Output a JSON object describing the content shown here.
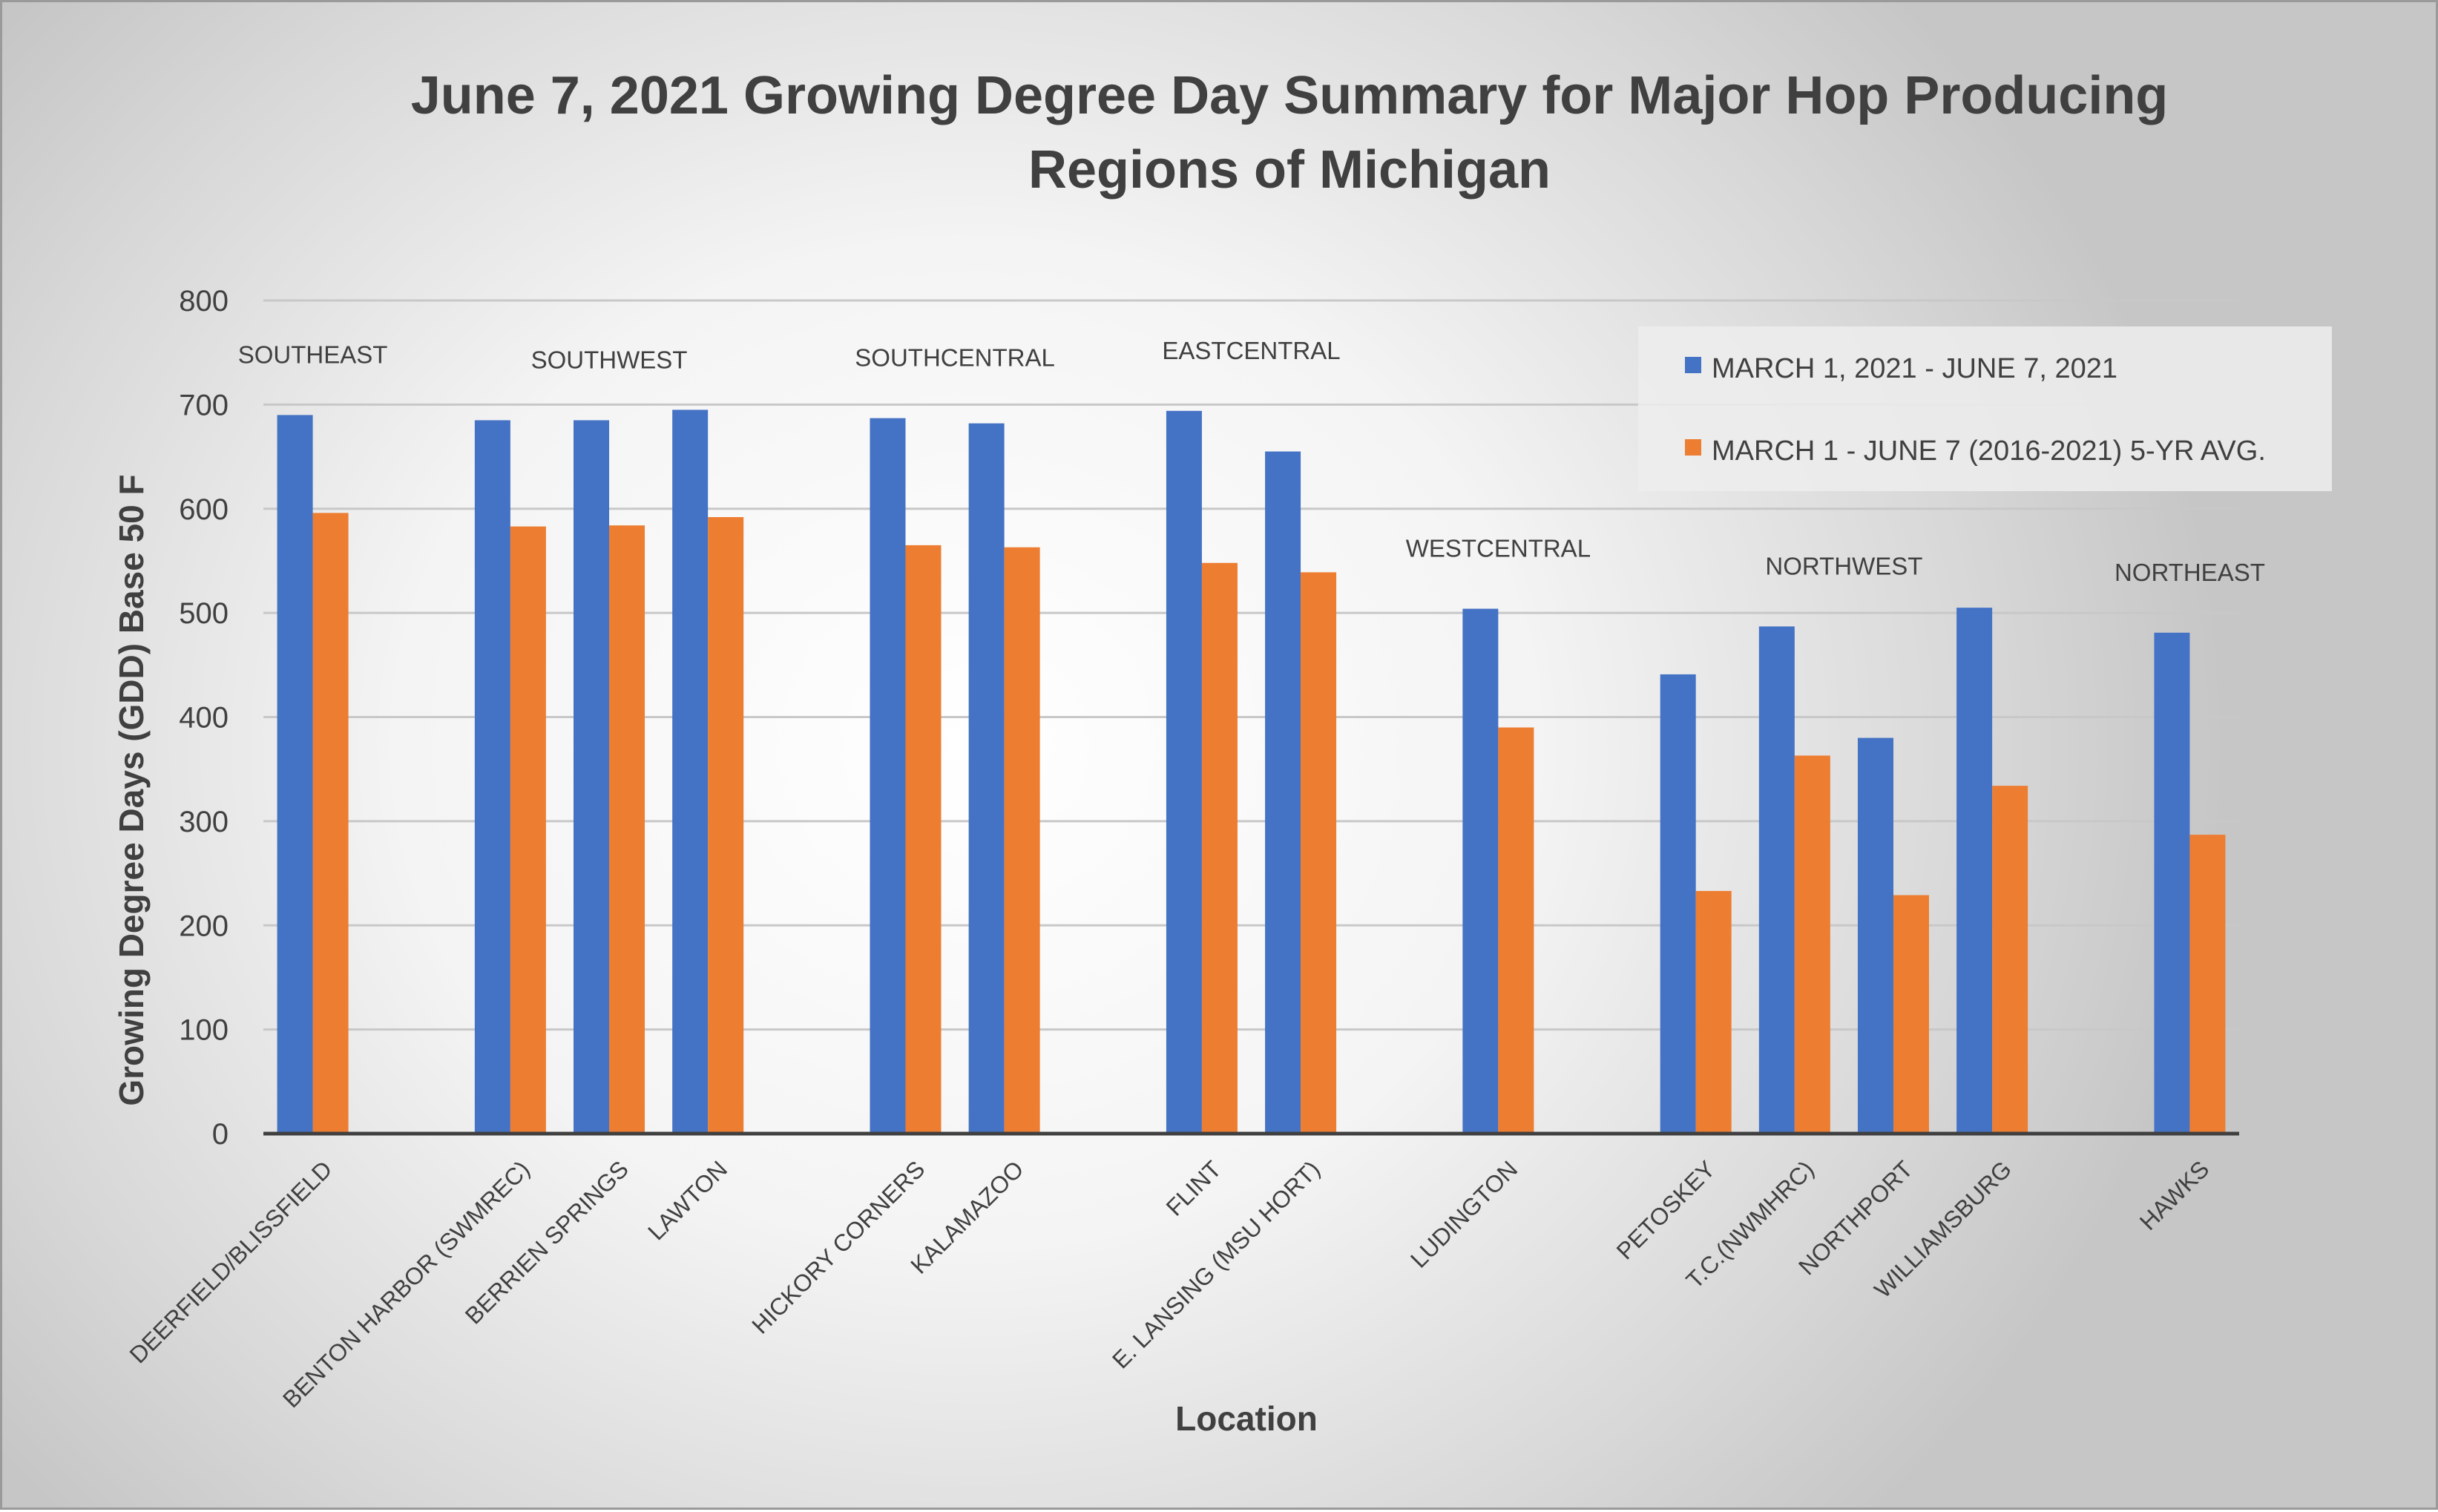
{
  "chart_data": {
    "type": "bar",
    "title_lines": [
      "June 7, 2021 Growing Degree Day Summary for Major Hop Producing",
      "Regions of Michigan"
    ],
    "xlabel": "Location",
    "ylabel": "Growing Degree Days (GDD) Base 50 F",
    "ylim": [
      0,
      800
    ],
    "yticks": [
      0,
      100,
      200,
      300,
      400,
      500,
      600,
      700,
      800
    ],
    "grid": true,
    "legend_position": "top-right",
    "categories": [
      "DEERFIELD/BLISSFIELD",
      "",
      "BENTON HARBOR (SWMREC)",
      "BERRIEN SPRINGS",
      "LAWTON",
      "",
      "HICKORY CORNERS",
      "KALAMAZOO",
      "",
      "FLINT",
      "E. LANSING (MSU HORT)",
      "",
      "LUDINGTON",
      "",
      "PETOSKEY",
      "T.C.(NWMHRC)",
      "NORTHPORT",
      "WILLIAMSBURG",
      "",
      "HAWKS"
    ],
    "series": [
      {
        "name": "MARCH 1, 2021 - JUNE 7, 2021",
        "color": "#4472c4",
        "values": [
          690,
          null,
          685,
          685,
          695,
          null,
          687,
          682,
          null,
          694,
          655,
          null,
          504,
          null,
          441,
          487,
          380,
          505,
          null,
          481
        ]
      },
      {
        "name": "MARCH 1 - JUNE 7 (2016-2021) 5-YR AVG.",
        "color": "#ed7d31",
        "values": [
          596,
          null,
          583,
          584,
          592,
          null,
          565,
          563,
          null,
          548,
          539,
          null,
          390,
          null,
          233,
          363,
          229,
          334,
          null,
          287
        ]
      }
    ],
    "region_labels": [
      {
        "text": "SOUTHEAST",
        "category_index": 0
      },
      {
        "text": "SOUTHWEST",
        "category_index": 3
      },
      {
        "text": "SOUTHCENTRAL",
        "category_index": 6.5
      },
      {
        "text": "EASTCENTRAL",
        "category_index": 9.5
      },
      {
        "text": "WESTCENTRAL",
        "category_index": 12
      },
      {
        "text": "NORTHWEST",
        "category_index": 15.5
      },
      {
        "text": "NORTHEAST",
        "category_index": 19
      }
    ]
  }
}
